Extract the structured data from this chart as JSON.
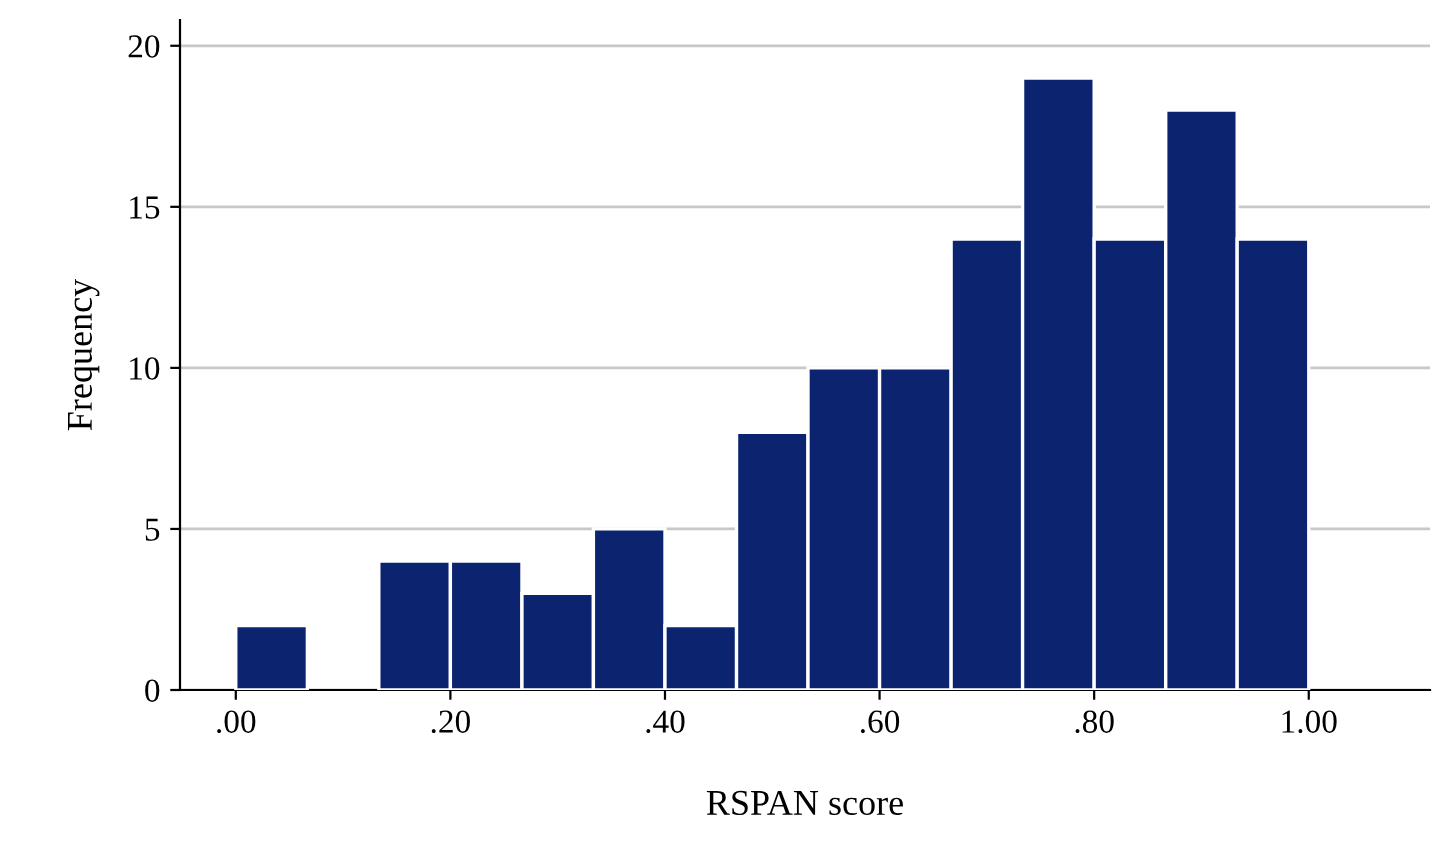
{
  "chart_data": {
    "type": "histogram",
    "xlabel": "RSPAN score",
    "ylabel": "Frequency",
    "bins": [
      0,
      0.0667,
      0.1333,
      0.2,
      0.2667,
      0.3333,
      0.4,
      0.4667,
      0.5333,
      0.6,
      0.6667,
      0.7333,
      0.8,
      0.8667,
      0.9333,
      1.0
    ],
    "values": [
      2,
      0,
      4,
      4,
      3,
      5,
      2,
      8,
      10,
      10,
      14,
      19,
      14,
      18,
      14
    ],
    "color": "#0c2470",
    "xlim": [
      -0.052,
      1.113
    ],
    "ylim": [
      0,
      20.8
    ],
    "xticks": [
      {
        "value": 0,
        "label": ".00"
      },
      {
        "value": 0.2,
        "label": ".20"
      },
      {
        "value": 0.4,
        "label": ".40"
      },
      {
        "value": 0.6,
        "label": ".60"
      },
      {
        "value": 0.8,
        "label": ".80"
      },
      {
        "value": 1.0,
        "label": "1.00"
      }
    ],
    "yticks": [
      0,
      5,
      10,
      15,
      20
    ],
    "grid": "y"
  }
}
